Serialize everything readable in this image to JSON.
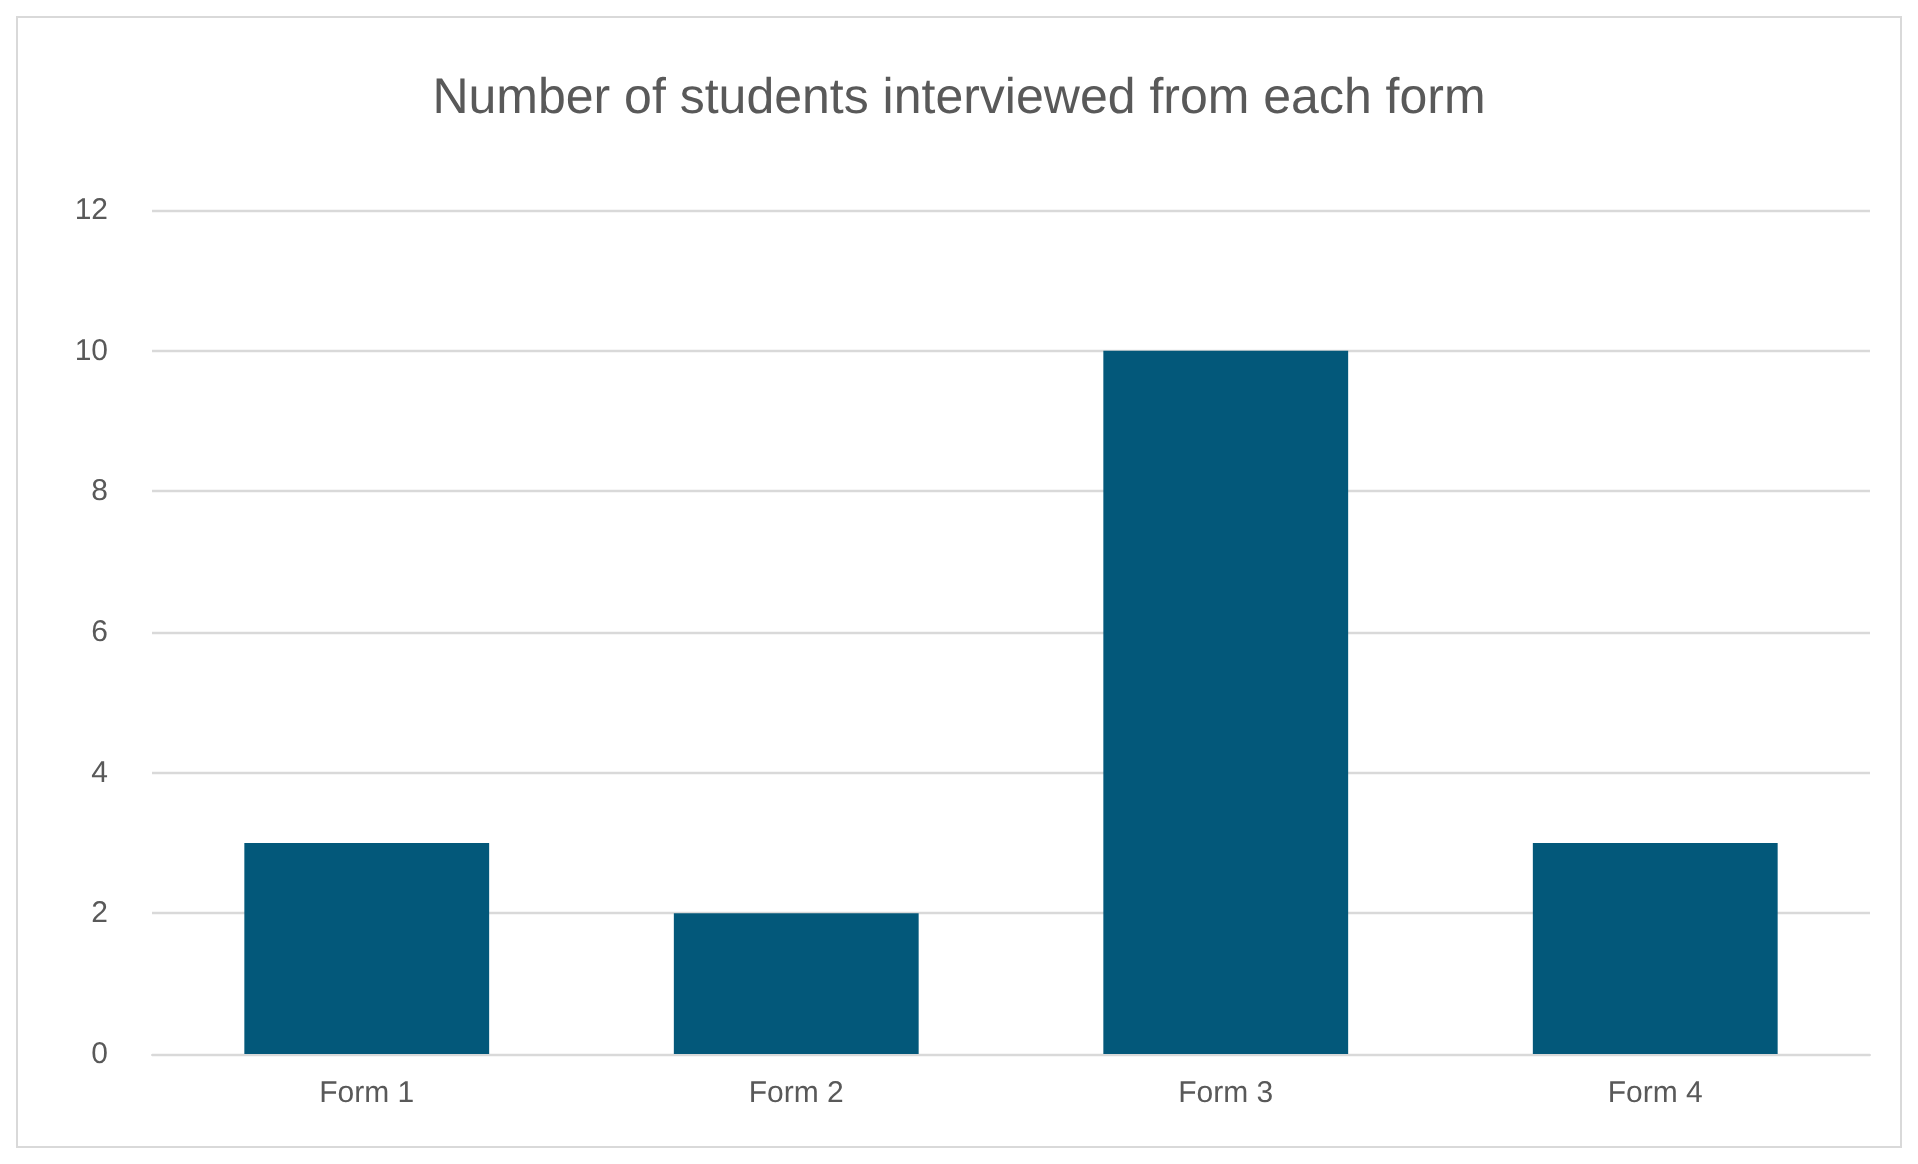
{
  "chart_data": {
    "type": "bar",
    "title": "Number of students interviewed from each form",
    "categories": [
      "Form 1",
      "Form 2",
      "Form 3",
      "Form 4"
    ],
    "values": [
      3,
      2,
      10,
      3
    ],
    "color": "#03587a",
    "ylim": [
      0,
      12
    ],
    "yticks": [
      0,
      2,
      4,
      6,
      8,
      10,
      12
    ],
    "grid": "y"
  }
}
